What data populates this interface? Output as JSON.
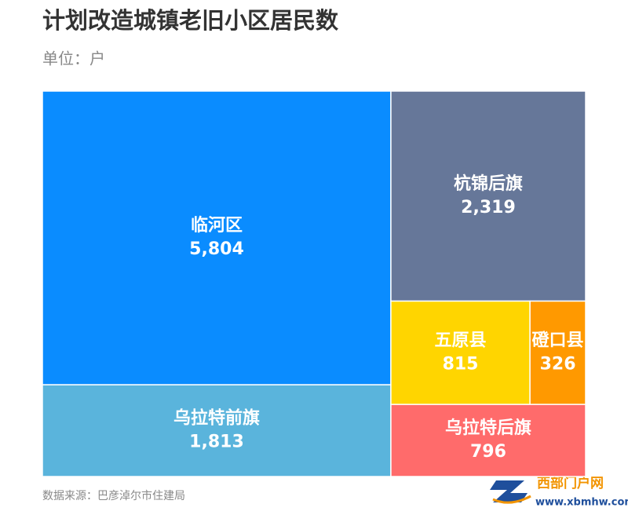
{
  "chart_data": {
    "type": "treemap",
    "title": "计划改造城镇老旧小区居民数",
    "subtitle": "单位：户",
    "categories": [
      "临河区",
      "杭锦后旗",
      "乌拉特前旗",
      "五原县",
      "乌拉特后旗",
      "磴口县"
    ],
    "values": [
      5804,
      2319,
      1813,
      815,
      796,
      326
    ],
    "value_labels": [
      "5,804",
      "2,319",
      "1,813",
      "815",
      "796",
      "326"
    ],
    "colors": [
      "#0a8cff",
      "#667799",
      "#5ab4dc",
      "#ffd500",
      "#ff6b6b",
      "#ff9900"
    ],
    "source": "数据来源：巴彦淖尔市住建局"
  },
  "watermark": {
    "name": "西部门户网",
    "url": "www.xbmhw.com"
  }
}
